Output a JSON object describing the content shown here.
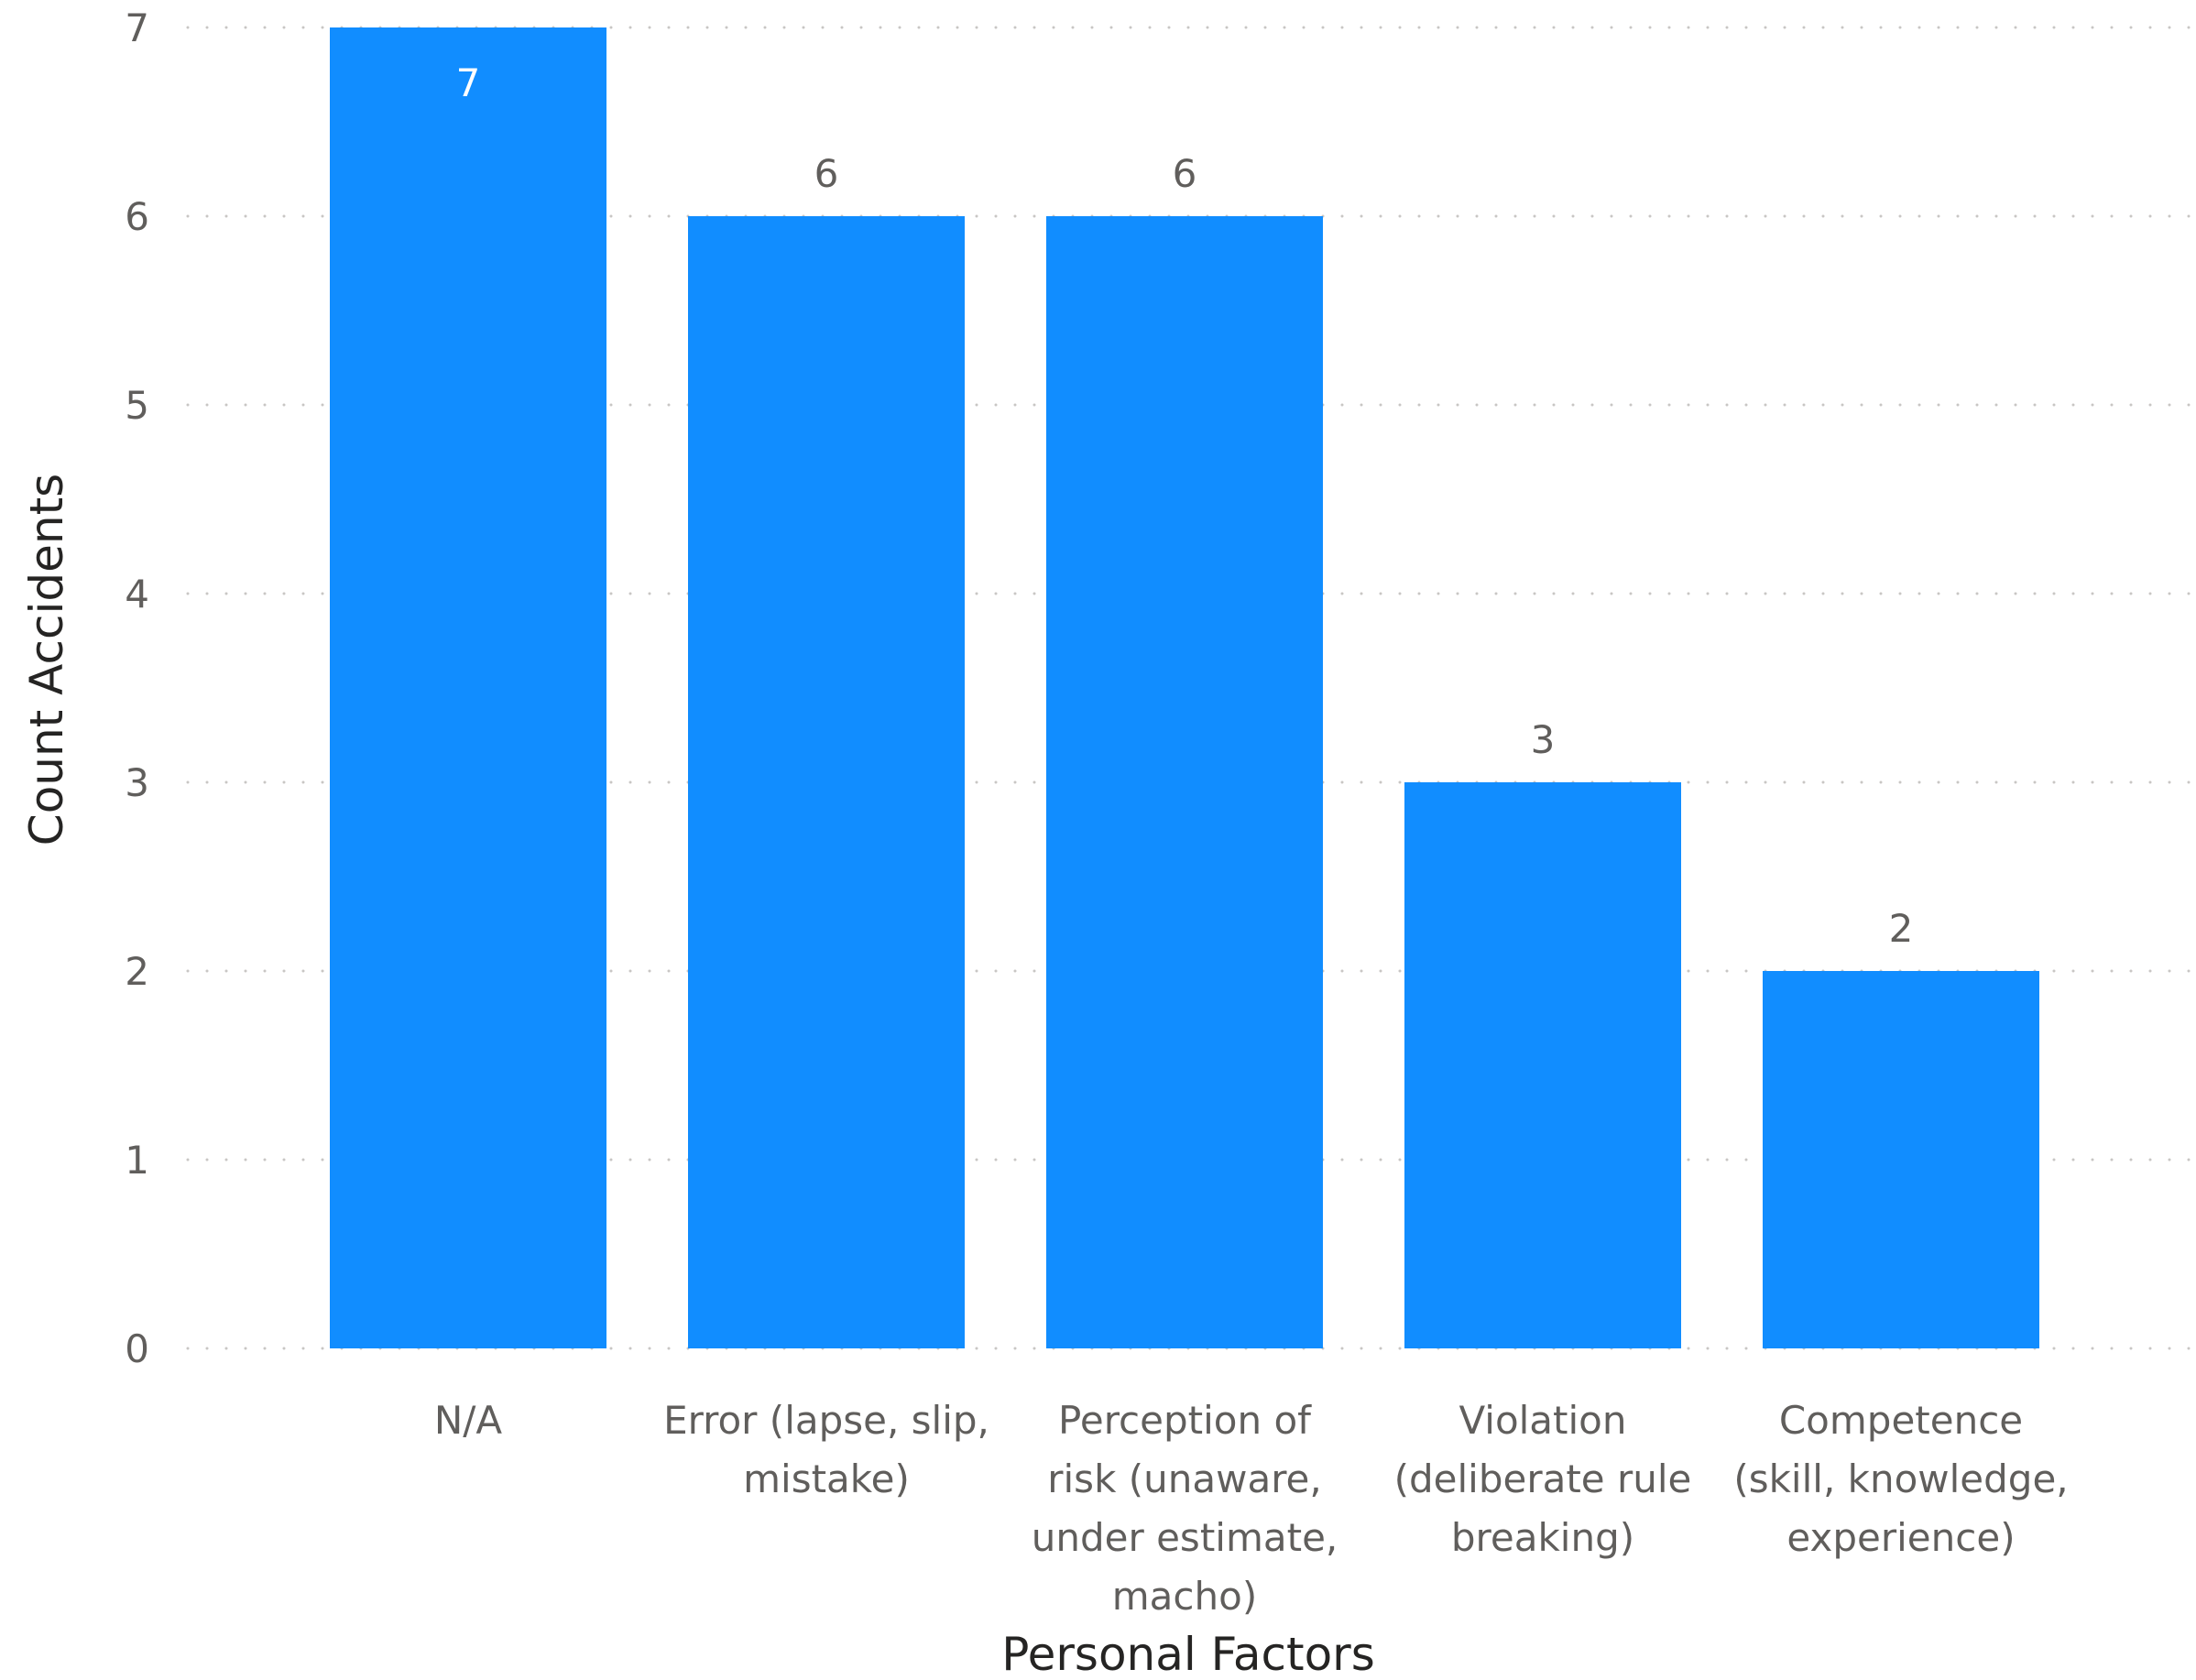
{
  "chart_data": {
    "type": "bar",
    "title": "",
    "xlabel": "Personal Factors",
    "ylabel": "Count Accidents",
    "categories": [
      [
        "N/A"
      ],
      [
        "Error (lapse, slip,",
        "mistake)"
      ],
      [
        "Perception of",
        "risk (unaware,",
        "under estimate,",
        "macho)"
      ],
      [
        "Violation",
        "(deliberate rule",
        "breaking)"
      ],
      [
        "Competence",
        "(skill, knowledge,",
        "experience)"
      ]
    ],
    "values": [
      7,
      6,
      6,
      3,
      2
    ],
    "data_labels": [
      "7",
      "6",
      "6",
      "3",
      "2"
    ],
    "ylim": [
      0,
      7
    ],
    "yticks": [
      "0",
      "1",
      "2",
      "3",
      "4",
      "5",
      "6",
      "7"
    ],
    "grid": "horizontal-dotted",
    "legend": "none",
    "colors": {
      "bar": "#118dff",
      "gridline": "#c8c6c4",
      "tick_text": "#605e5c",
      "title_text": "#252423",
      "label_inside": "#ffffff",
      "label_outside": "#605e5c"
    }
  }
}
